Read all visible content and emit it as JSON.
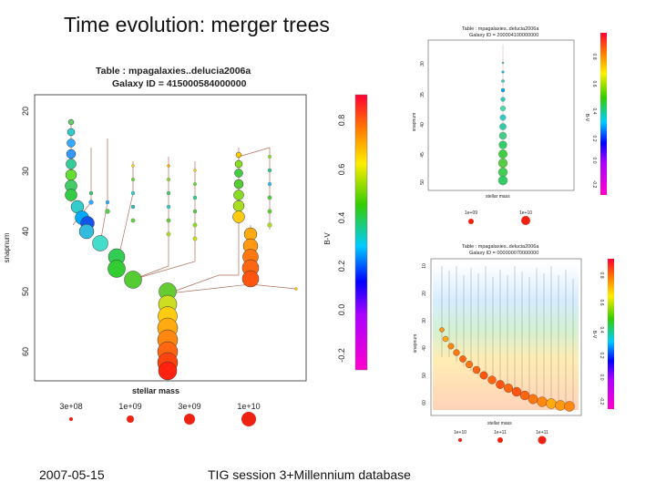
{
  "slide": {
    "title": "Time evolution: merger trees",
    "footer_date": "2007-05-15",
    "footer_text": "TIG session 3+Millennium database"
  },
  "main_plot": {
    "title_line1": "Table : mpagalaxies..delucia2006a",
    "title_line2": "Galaxy ID = 415000584000000",
    "y_label": "snapnum",
    "y_ticks": [
      "20",
      "30",
      "40",
      "50",
      "60"
    ],
    "x_label": "stellar mass",
    "colorbar_label": "B-V",
    "colorbar_ticks": [
      "0.8",
      "0.6",
      "0.4",
      "0.2",
      "0.0",
      "-0.2"
    ],
    "size_legend": [
      "3e+08",
      "1e+09",
      "3e+09",
      "1e+10"
    ]
  },
  "top_right_plot": {
    "title_line1": "Table : mpagalaxies..delucia2006a",
    "title_line2": "Galaxy ID = 200004100000000",
    "y_label": "snapnum",
    "y_ticks": [
      "30",
      "35",
      "40",
      "45",
      "50"
    ],
    "x_label": "stellar mass",
    "colorbar_label": "B-V",
    "colorbar_ticks": [
      "0.8",
      "0.6",
      "0.4",
      "0.2",
      "0.0",
      "-0.2"
    ],
    "size_legend": [
      "1e+09",
      "1e+10"
    ]
  },
  "bottom_right_plot": {
    "title_line1": "Table : mpagalaxies..delucia2006a",
    "title_line2": "Galaxy ID = 000000070000000",
    "y_label": "snapnum",
    "y_ticks": [
      "10",
      "20",
      "30",
      "40",
      "50",
      "60"
    ],
    "x_label": "stellar mass",
    "colorbar_label": "B-V",
    "colorbar_ticks": [
      "0.8",
      "0.6",
      "0.4",
      "0.2",
      "0.0",
      "-0.2"
    ],
    "size_legend": [
      "1e+10",
      "1e+11",
      "1e+11"
    ]
  }
}
